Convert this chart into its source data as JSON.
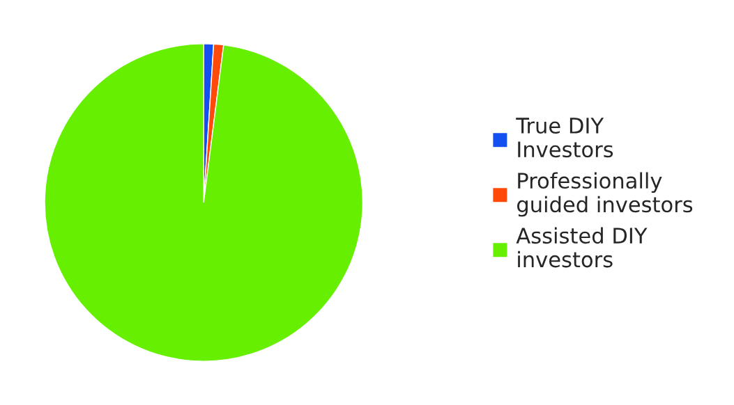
{
  "chart_data": {
    "type": "pie",
    "categories": [
      "True DIY Investors",
      "Professionally guided investors",
      "Assisted DIY investors"
    ],
    "values": [
      1,
      1,
      98
    ],
    "colors": [
      "#1450f0",
      "#ff4a0a",
      "#66ef00"
    ],
    "legend": "right"
  }
}
